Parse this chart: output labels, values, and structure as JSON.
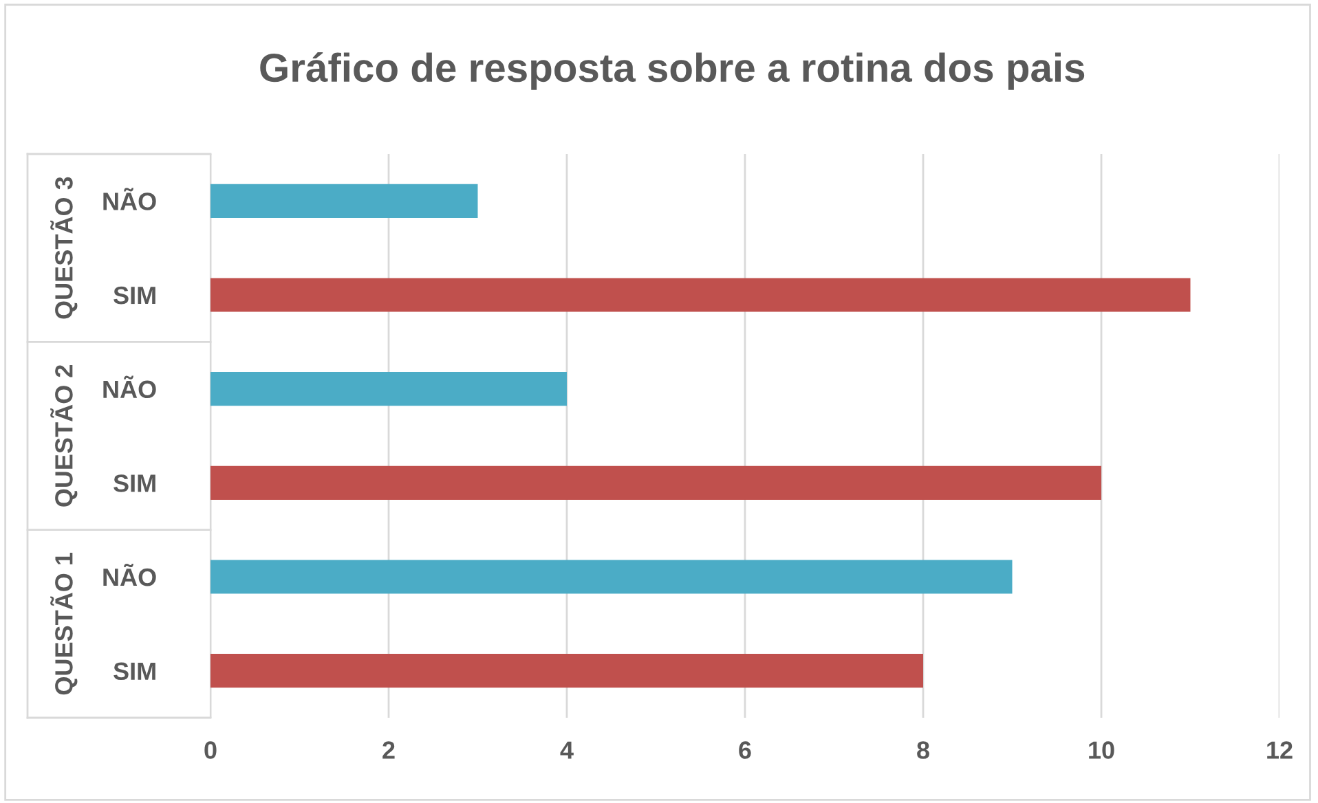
{
  "chart_data": {
    "type": "bar",
    "orientation": "horizontal",
    "title": "Gráfico de resposta sobre a rotina dos pais",
    "categories": [
      "NÃO",
      "SIM",
      "NÃO",
      "SIM",
      "NÃO",
      "SIM"
    ],
    "values": [
      3,
      11,
      4,
      10,
      9,
      8
    ],
    "colors": [
      "#4bacc6",
      "#c0504d",
      "#4bacc6",
      "#c0504d",
      "#4bacc6",
      "#c0504d"
    ],
    "annotations": [
      "QUESTÃO 3",
      "QUESTÃO 2",
      "QUESTÃO 1"
    ],
    "xlim": [
      0,
      12
    ],
    "xticks": [
      0,
      2,
      4,
      6,
      8,
      10,
      12
    ],
    "grid": "x"
  }
}
